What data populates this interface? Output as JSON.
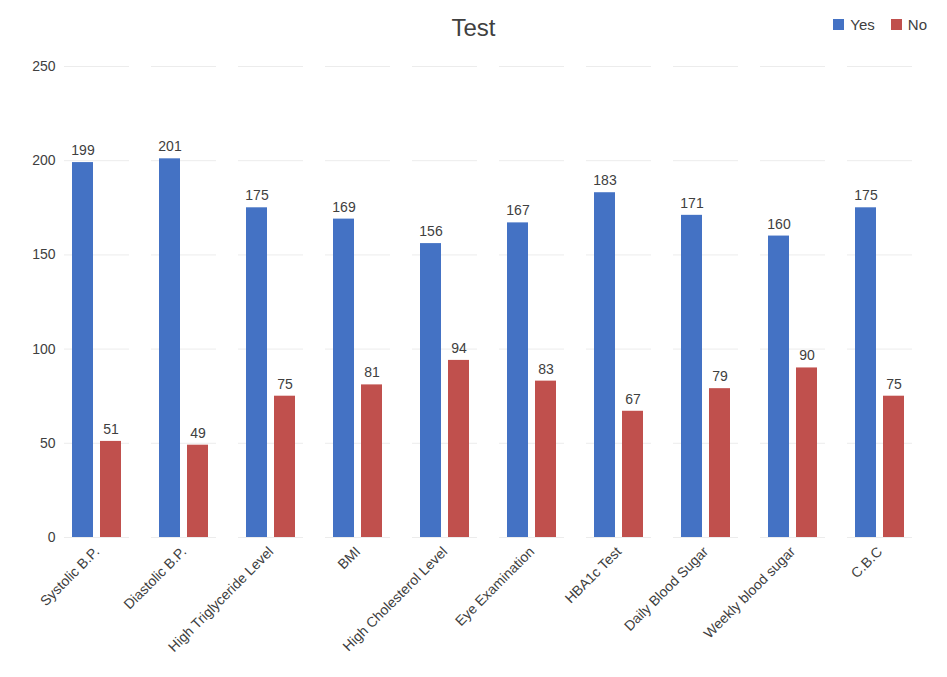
{
  "chart_data": {
    "type": "bar",
    "title": "Test",
    "categories": [
      "Systolic B.P.",
      "Diastolic B.P.",
      "High Triglyceride Level",
      "BMI",
      "High Cholesterol Level",
      "Eye Examination",
      "HBA1c Test",
      "Daily Blood Sugar",
      "Weekly blood sugar",
      "C.B.C"
    ],
    "series": [
      {
        "name": "Yes",
        "color": "#4472c4",
        "values": [
          199,
          201,
          175,
          169,
          156,
          167,
          183,
          171,
          160,
          175
        ]
      },
      {
        "name": "No",
        "color": "#c0504d",
        "values": [
          51,
          49,
          75,
          81,
          94,
          83,
          67,
          79,
          90,
          75
        ]
      }
    ],
    "ylim": [
      0,
      250
    ],
    "yticks": [
      0,
      50,
      100,
      150,
      200,
      250
    ],
    "grid": true,
    "legend": "top-right",
    "data_labels": true
  }
}
